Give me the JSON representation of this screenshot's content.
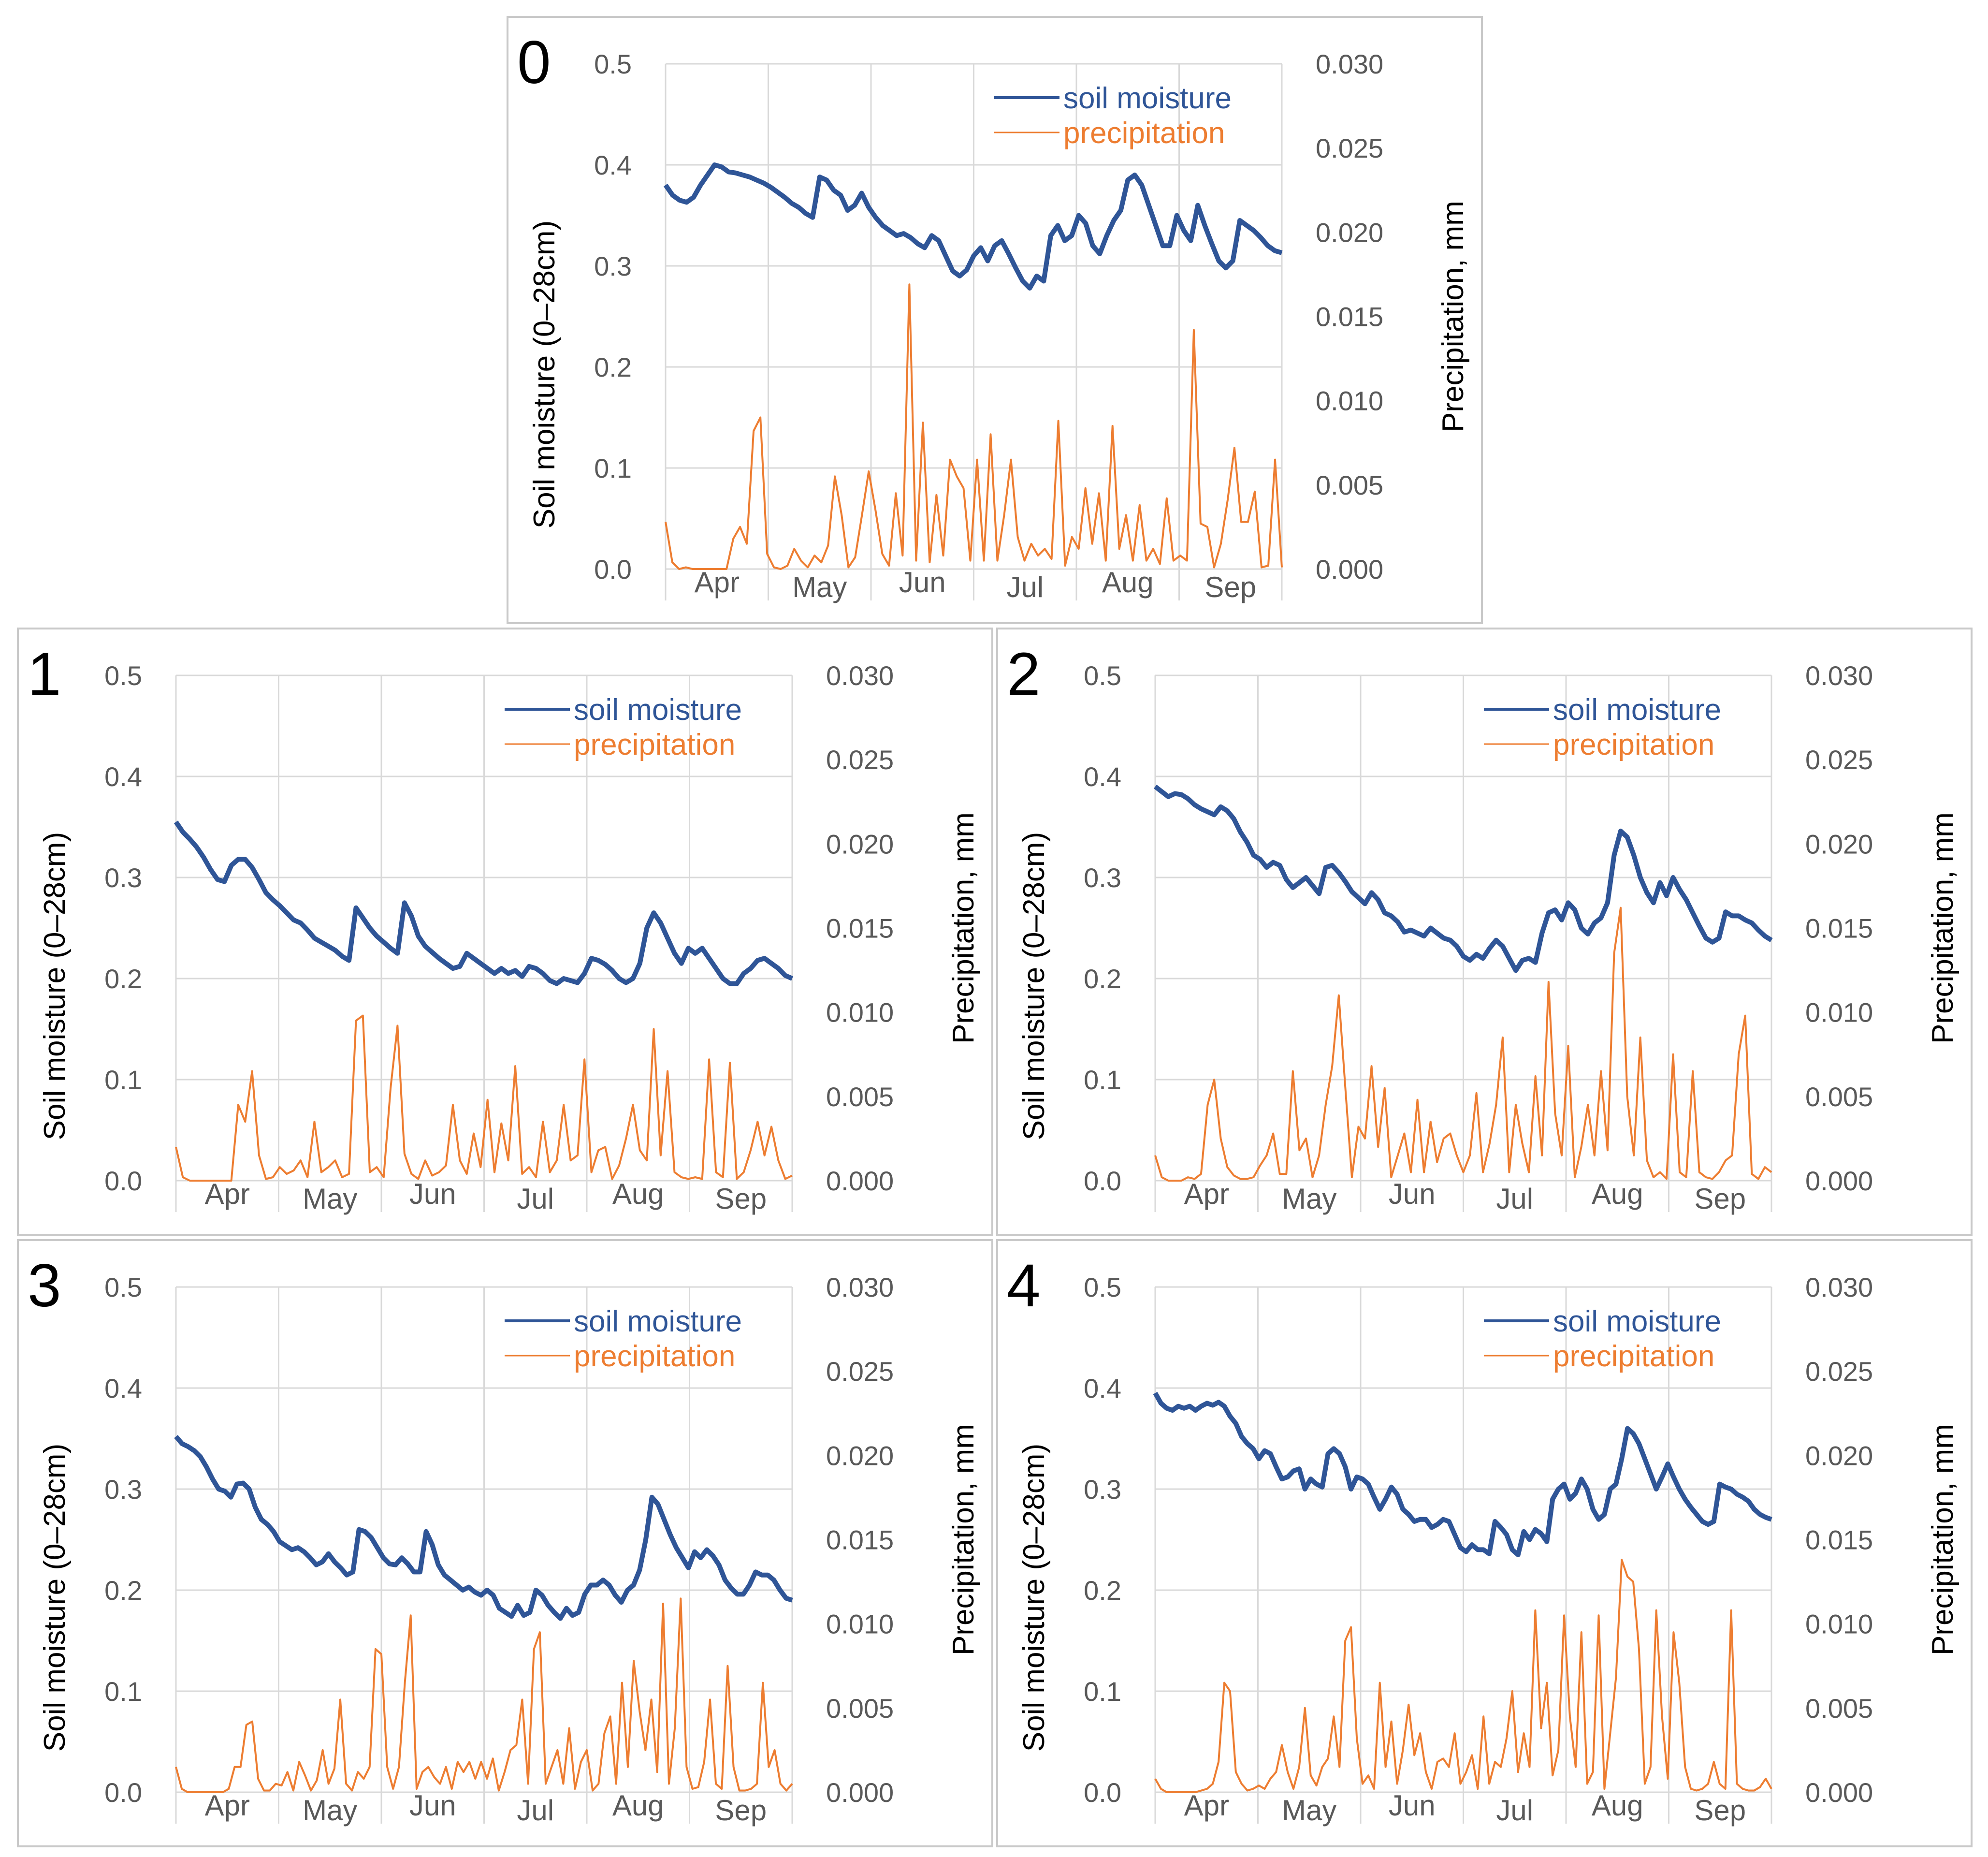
{
  "colors": {
    "soil": "#2f5597",
    "precip": "#ed7d31",
    "grid": "#d9d9d9",
    "tick_text": "#595959"
  },
  "chart_data": [
    {
      "type": "line",
      "panel_label": "0",
      "ylabel_left": "Soil moisture (0–28cm)",
      "ylabel_right": "Precipitation, mm",
      "y_left_ticks": [
        "0.0",
        "0.1",
        "0.2",
        "0.3",
        "0.4",
        "0.5"
      ],
      "y_right_ticks": [
        "0.000",
        "0.005",
        "0.010",
        "0.015",
        "0.020",
        "0.025",
        "0.030"
      ],
      "ylim_left": [
        0,
        0.5
      ],
      "ylim_right": [
        0,
        0.03
      ],
      "months": [
        "Apr",
        "May",
        "Jun",
        "Jul",
        "Aug",
        "Sep"
      ],
      "legend": {
        "soil": "soil moisture",
        "precip": "precipitation",
        "position": "top-right"
      },
      "soil_moisture": [
        0.38,
        0.37,
        0.365,
        0.363,
        0.368,
        0.38,
        0.39,
        0.4,
        0.398,
        0.393,
        0.392,
        0.39,
        0.388,
        0.385,
        0.382,
        0.378,
        0.373,
        0.368,
        0.362,
        0.358,
        0.352,
        0.348,
        0.388,
        0.385,
        0.375,
        0.37,
        0.355,
        0.36,
        0.372,
        0.358,
        0.348,
        0.34,
        0.335,
        0.33,
        0.332,
        0.328,
        0.322,
        0.318,
        0.33,
        0.325,
        0.31,
        0.295,
        0.29,
        0.296,
        0.31,
        0.318,
        0.305,
        0.32,
        0.325,
        0.312,
        0.298,
        0.285,
        0.278,
        0.29,
        0.285,
        0.33,
        0.34,
        0.325,
        0.33,
        0.35,
        0.342,
        0.32,
        0.312,
        0.33,
        0.345,
        0.355,
        0.385,
        0.39,
        0.38,
        0.36,
        0.34,
        0.32,
        0.32,
        0.35,
        0.335,
        0.325,
        0.36,
        0.34,
        0.322,
        0.305,
        0.298,
        0.305,
        0.345,
        0.34,
        0.335,
        0.328,
        0.32,
        0.315,
        0.313
      ],
      "precipitation": [
        0.0028,
        0.0004,
        0,
        0.0001,
        0,
        0,
        0,
        0,
        0,
        0,
        0.0018,
        0.0025,
        0.0015,
        0.0082,
        0.009,
        0.0009,
        0.0001,
        0,
        0.0002,
        0.0012,
        0.0005,
        0.0001,
        0.0008,
        0.0004,
        0.0014,
        0.0055,
        0.0032,
        0.0001,
        0.0007,
        0.0032,
        0.0058,
        0.0035,
        0.0009,
        0.0002,
        0.0045,
        0.0008,
        0.0169,
        0.0005,
        0.0087,
        0.0004,
        0.0044,
        0.0008,
        0.0065,
        0.0055,
        0.0048,
        0.0005,
        0.0065,
        0.0005,
        0.008,
        0.0005,
        0.0032,
        0.0065,
        0.0019,
        0.0005,
        0.0015,
        0.0008,
        0.0012,
        0.0006,
        0.0088,
        0.0002,
        0.0019,
        0.0012,
        0.0048,
        0.0015,
        0.0045,
        0.0005,
        0.0085,
        0.0012,
        0.0032,
        0.0005,
        0.0038,
        0.0005,
        0.0012,
        0.0003,
        0.0042,
        0.0005,
        0.0008,
        0.0005,
        0.0142,
        0.0027,
        0.0025,
        0.0001,
        0.0015,
        0.0041,
        0.0072,
        0.0028,
        0.0028,
        0.0046,
        0.0001,
        0.0002,
        0.0065,
        0.0001
      ],
      "month_ticks": [
        "Apr",
        "May",
        "Jun",
        "Jul",
        "Aug",
        "Sep"
      ]
    },
    {
      "type": "line",
      "panel_label": "1",
      "ylabel_left": "Soil moisture (0–28cm)",
      "ylabel_right": "Precipitation, mm",
      "y_left_ticks": [
        "0.0",
        "0.1",
        "0.2",
        "0.3",
        "0.4",
        "0.5"
      ],
      "y_right_ticks": [
        "0.000",
        "0.005",
        "0.010",
        "0.015",
        "0.020",
        "0.025",
        "0.030"
      ],
      "ylim_left": [
        0,
        0.5
      ],
      "ylim_right": [
        0,
        0.03
      ],
      "months": [
        "Apr",
        "May",
        "Jun",
        "Jul",
        "Aug",
        "Sep"
      ],
      "legend": {
        "soil": "soil moisture",
        "precip": "precipitation",
        "position": "top-right"
      },
      "soil_moisture": [
        0.355,
        0.345,
        0.338,
        0.33,
        0.32,
        0.308,
        0.298,
        0.296,
        0.312,
        0.318,
        0.318,
        0.31,
        0.298,
        0.285,
        0.278,
        0.272,
        0.265,
        0.258,
        0.255,
        0.248,
        0.24,
        0.236,
        0.232,
        0.228,
        0.222,
        0.218,
        0.27,
        0.26,
        0.25,
        0.242,
        0.236,
        0.23,
        0.225,
        0.275,
        0.262,
        0.242,
        0.232,
        0.226,
        0.22,
        0.215,
        0.21,
        0.212,
        0.225,
        0.22,
        0.215,
        0.21,
        0.205,
        0.21,
        0.205,
        0.208,
        0.202,
        0.212,
        0.21,
        0.205,
        0.198,
        0.195,
        0.2,
        0.198,
        0.196,
        0.205,
        0.22,
        0.218,
        0.214,
        0.208,
        0.2,
        0.196,
        0.2,
        0.215,
        0.25,
        0.265,
        0.255,
        0.24,
        0.225,
        0.215,
        0.23,
        0.225,
        0.23,
        0.22,
        0.21,
        0.2,
        0.195,
        0.195,
        0.205,
        0.21,
        0.218,
        0.22,
        0.215,
        0.21,
        0.203,
        0.2
      ],
      "precipitation": [
        0.002,
        0.0002,
        0,
        0,
        0,
        0,
        0,
        0,
        0,
        0.0045,
        0.0035,
        0.0065,
        0.0015,
        0.0001,
        0.0002,
        0.0008,
        0.0004,
        0.0006,
        0.0012,
        0.0002,
        0.0035,
        0.0005,
        0.0008,
        0.0012,
        0.0002,
        0.0004,
        0.0095,
        0.0098,
        0.0005,
        0.0008,
        0.0002,
        0.0055,
        0.0092,
        0.0016,
        0.0004,
        0.0001,
        0.0012,
        0.0003,
        0.0005,
        0.0009,
        0.0045,
        0.0012,
        0.0004,
        0.0028,
        0.0008,
        0.0048,
        0.0005,
        0.0034,
        0.0012,
        0.0068,
        0.0004,
        0.0008,
        0.0002,
        0.0035,
        0.0005,
        0.0012,
        0.0045,
        0.0012,
        0.0015,
        0.0072,
        0.0005,
        0.0018,
        0.002,
        0.0001,
        0.0009,
        0.0025,
        0.0045,
        0.0018,
        0.0012,
        0.009,
        0.0015,
        0.0065,
        0.0005,
        0.0002,
        0.0001,
        0.0002,
        0.0001,
        0.0072,
        0.0005,
        0.0002,
        0.007,
        0.0001,
        0.0005,
        0.0018,
        0.0035,
        0.0015,
        0.0032,
        0.0012,
        0.0001,
        0.0003
      ],
      "month_ticks": [
        "Apr",
        "May",
        "Jun",
        "Jul",
        "Aug",
        "Sep"
      ]
    },
    {
      "type": "line",
      "panel_label": "2",
      "ylabel_left": "Soil moisture (0–28cm)",
      "ylabel_right": "Precipitation, mm",
      "y_left_ticks": [
        "0.0",
        "0.1",
        "0.2",
        "0.3",
        "0.4",
        "0.5"
      ],
      "y_right_ticks": [
        "0.000",
        "0.005",
        "0.010",
        "0.015",
        "0.020",
        "0.025",
        "0.030"
      ],
      "ylim_left": [
        0,
        0.5
      ],
      "ylim_right": [
        0,
        0.03
      ],
      "months": [
        "Apr",
        "May",
        "Jun",
        "Jul",
        "Aug",
        "Sep"
      ],
      "legend": {
        "soil": "soil moisture",
        "precip": "precipitation",
        "position": "top-right"
      },
      "soil_moisture": [
        0.39,
        0.385,
        0.38,
        0.383,
        0.382,
        0.378,
        0.372,
        0.368,
        0.365,
        0.362,
        0.37,
        0.366,
        0.358,
        0.345,
        0.335,
        0.322,
        0.318,
        0.31,
        0.315,
        0.312,
        0.298,
        0.29,
        0.295,
        0.3,
        0.292,
        0.284,
        0.31,
        0.312,
        0.305,
        0.296,
        0.286,
        0.28,
        0.274,
        0.285,
        0.278,
        0.265,
        0.262,
        0.256,
        0.246,
        0.248,
        0.245,
        0.242,
        0.25,
        0.245,
        0.24,
        0.238,
        0.232,
        0.222,
        0.218,
        0.224,
        0.22,
        0.23,
        0.238,
        0.232,
        0.22,
        0.208,
        0.218,
        0.22,
        0.216,
        0.245,
        0.265,
        0.268,
        0.258,
        0.275,
        0.268,
        0.25,
        0.244,
        0.255,
        0.26,
        0.275,
        0.322,
        0.346,
        0.34,
        0.322,
        0.3,
        0.285,
        0.275,
        0.295,
        0.282,
        0.3,
        0.288,
        0.278,
        0.265,
        0.252,
        0.24,
        0.236,
        0.24,
        0.266,
        0.262,
        0.262,
        0.258,
        0.255,
        0.248,
        0.242,
        0.238
      ],
      "precipitation": [
        0.0015,
        0.0002,
        0,
        0,
        0,
        0.0002,
        0.0001,
        0.0004,
        0.0045,
        0.006,
        0.0025,
        0.0008,
        0.0003,
        0.0001,
        0.0001,
        0.0002,
        0.0009,
        0.0015,
        0.0028,
        0.0004,
        0.0004,
        0.0065,
        0.0018,
        0.0025,
        0.0002,
        0.0015,
        0.0045,
        0.0068,
        0.011,
        0.0055,
        0.0002,
        0.0032,
        0.0025,
        0.0068,
        0.002,
        0.0055,
        0.0002,
        0.0015,
        0.0028,
        0.0005,
        0.0048,
        0.0005,
        0.0035,
        0.0011,
        0.0025,
        0.0028,
        0.0015,
        0.0005,
        0.0015,
        0.0052,
        0.0005,
        0.0022,
        0.0045,
        0.0085,
        0.0005,
        0.0045,
        0.0022,
        0.0005,
        0.0062,
        0.0015,
        0.0118,
        0.004,
        0.0015,
        0.008,
        0.0002,
        0.002,
        0.0045,
        0.0015,
        0.0065,
        0.0018,
        0.0135,
        0.0162,
        0.005,
        0.0015,
        0.0085,
        0.0012,
        0.0002,
        0.0005,
        0.0001,
        0.0075,
        0.0005,
        0.0002,
        0.0065,
        0.0005,
        0.0002,
        0.0001,
        0.0005,
        0.0012,
        0.0015,
        0.0075,
        0.0098,
        0.0004,
        0.0001,
        0.0008,
        0.0005
      ],
      "month_ticks": [
        "Apr",
        "May",
        "Jun",
        "Jul",
        "Aug",
        "Sep"
      ]
    },
    {
      "type": "line",
      "panel_label": "3",
      "ylabel_left": "Soil moisture (0–28cm)",
      "ylabel_right": "Precipitation, mm",
      "y_left_ticks": [
        "0.0",
        "0.1",
        "0.2",
        "0.3",
        "0.4",
        "0.5"
      ],
      "y_right_ticks": [
        "0.000",
        "0.005",
        "0.010",
        "0.015",
        "0.020",
        "0.025",
        "0.030"
      ],
      "ylim_left": [
        0,
        0.5
      ],
      "ylim_right": [
        0,
        0.03
      ],
      "months": [
        "Apr",
        "May",
        "Jun",
        "Jul",
        "Aug",
        "Sep"
      ],
      "legend": {
        "soil": "soil moisture",
        "precip": "precipitation",
        "position": "top-right"
      },
      "soil_moisture": [
        0.352,
        0.345,
        0.342,
        0.338,
        0.332,
        0.322,
        0.31,
        0.3,
        0.298,
        0.292,
        0.305,
        0.306,
        0.3,
        0.282,
        0.27,
        0.265,
        0.258,
        0.248,
        0.244,
        0.24,
        0.242,
        0.238,
        0.232,
        0.225,
        0.228,
        0.236,
        0.228,
        0.222,
        0.215,
        0.218,
        0.26,
        0.258,
        0.252,
        0.242,
        0.232,
        0.226,
        0.225,
        0.232,
        0.226,
        0.218,
        0.218,
        0.258,
        0.245,
        0.225,
        0.215,
        0.21,
        0.205,
        0.2,
        0.203,
        0.198,
        0.195,
        0.2,
        0.195,
        0.182,
        0.178,
        0.174,
        0.185,
        0.175,
        0.178,
        0.2,
        0.195,
        0.185,
        0.178,
        0.172,
        0.182,
        0.175,
        0.178,
        0.196,
        0.205,
        0.205,
        0.21,
        0.205,
        0.195,
        0.188,
        0.2,
        0.205,
        0.22,
        0.25,
        0.292,
        0.285,
        0.27,
        0.255,
        0.242,
        0.232,
        0.222,
        0.238,
        0.232,
        0.24,
        0.234,
        0.225,
        0.21,
        0.202,
        0.196,
        0.196,
        0.205,
        0.218,
        0.215,
        0.215,
        0.21,
        0.2,
        0.192,
        0.19
      ],
      "precipitation": [
        0.0015,
        0.0002,
        0,
        0,
        0,
        0,
        0,
        0,
        0,
        0.0002,
        0.0015,
        0.0015,
        0.004,
        0.0042,
        0.0008,
        0.0001,
        0.0001,
        0.0005,
        0.0004,
        0.0012,
        0.0001,
        0.0018,
        0.001,
        0.0001,
        0.0007,
        0.0025,
        0.0005,
        0.0014,
        0.0055,
        0.0005,
        0.0001,
        0.0012,
        0.0008,
        0.0015,
        0.0085,
        0.0082,
        0.0015,
        0.0002,
        0.0015,
        0.0065,
        0.0105,
        0.0002,
        0.0012,
        0.0015,
        0.0009,
        0.0005,
        0.0015,
        0.0002,
        0.0018,
        0.0012,
        0.0018,
        0.0008,
        0.0018,
        0.0008,
        0.002,
        0.0001,
        0.0012,
        0.0025,
        0.0028,
        0.0055,
        0.0005,
        0.0085,
        0.0095,
        0.0005,
        0.0015,
        0.0025,
        0.0005,
        0.0038,
        0.0002,
        0.0018,
        0.0025,
        0.0001,
        0.0005,
        0.0035,
        0.0045,
        0.0005,
        0.0065,
        0.0015,
        0.0078,
        0.0048,
        0.0025,
        0.0055,
        0.0012,
        0.0112,
        0.0005,
        0.0038,
        0.0115,
        0.0015,
        0.0002,
        0.0003,
        0.0018,
        0.0055,
        0.0005,
        0.0002,
        0.0075,
        0.0015,
        0.0001,
        0.0001,
        0.0002,
        0.0005,
        0.0065,
        0.0015,
        0.0025,
        0.0005,
        0.0001,
        0.0005
      ],
      "month_ticks": [
        "Apr",
        "May",
        "Jun",
        "Jul",
        "Aug",
        "Sep"
      ]
    },
    {
      "type": "line",
      "panel_label": "4",
      "ylabel_left": "Soil moisture (0–28cm)",
      "ylabel_right": "Precipitation, mm",
      "y_left_ticks": [
        "0.0",
        "0.1",
        "0.2",
        "0.3",
        "0.4",
        "0.5"
      ],
      "y_right_ticks": [
        "0.000",
        "0.005",
        "0.010",
        "0.015",
        "0.020",
        "0.025",
        "0.030"
      ],
      "ylim_left": [
        0,
        0.5
      ],
      "ylim_right": [
        0,
        0.03
      ],
      "months": [
        "Apr",
        "May",
        "Jun",
        "Jul",
        "Aug",
        "Sep"
      ],
      "legend": {
        "soil": "soil moisture",
        "precip": "precipitation",
        "position": "top-right"
      },
      "soil_moisture": [
        0.395,
        0.385,
        0.38,
        0.378,
        0.382,
        0.38,
        0.382,
        0.378,
        0.382,
        0.385,
        0.383,
        0.386,
        0.382,
        0.372,
        0.365,
        0.352,
        0.345,
        0.34,
        0.33,
        0.338,
        0.335,
        0.322,
        0.31,
        0.312,
        0.318,
        0.32,
        0.3,
        0.31,
        0.305,
        0.302,
        0.335,
        0.34,
        0.335,
        0.322,
        0.3,
        0.312,
        0.31,
        0.305,
        0.292,
        0.28,
        0.29,
        0.302,
        0.295,
        0.28,
        0.275,
        0.268,
        0.27,
        0.27,
        0.262,
        0.265,
        0.27,
        0.268,
        0.255,
        0.242,
        0.238,
        0.245,
        0.24,
        0.24,
        0.236,
        0.268,
        0.262,
        0.255,
        0.24,
        0.235,
        0.258,
        0.25,
        0.26,
        0.256,
        0.248,
        0.29,
        0.3,
        0.305,
        0.29,
        0.296,
        0.31,
        0.3,
        0.28,
        0.27,
        0.275,
        0.3,
        0.305,
        0.33,
        0.36,
        0.355,
        0.345,
        0.33,
        0.315,
        0.3,
        0.312,
        0.325,
        0.312,
        0.3,
        0.29,
        0.282,
        0.275,
        0.268,
        0.265,
        0.268,
        0.305,
        0.302,
        0.3,
        0.295,
        0.292,
        0.288,
        0.28,
        0.275,
        0.272,
        0.27
      ],
      "precipitation": [
        0.0008,
        0.0002,
        0,
        0,
        0,
        0,
        0,
        0,
        0.0001,
        0.0002,
        0.0005,
        0.0018,
        0.0065,
        0.006,
        0.0012,
        0.0005,
        0.0001,
        0.0002,
        0.0004,
        0.0002,
        0.0008,
        0.0012,
        0.0028,
        0.0012,
        0.0002,
        0.0015,
        0.005,
        0.001,
        0.0004,
        0.0015,
        0.002,
        0.0045,
        0.0015,
        0.009,
        0.0098,
        0.0032,
        0.0005,
        0.001,
        0.0002,
        0.0065,
        0.0015,
        0.0042,
        0.0005,
        0.0025,
        0.0052,
        0.0022,
        0.0035,
        0.0012,
        0.0002,
        0.0018,
        0.002,
        0.0015,
        0.0035,
        0.0005,
        0.0012,
        0.0022,
        0.0002,
        0.0045,
        0.0005,
        0.0018,
        0.0015,
        0.0032,
        0.006,
        0.0012,
        0.0035,
        0.0015,
        0.0108,
        0.0038,
        0.0065,
        0.001,
        0.0025,
        0.0105,
        0.0045,
        0.0015,
        0.0095,
        0.0005,
        0.0012,
        0.0105,
        0.0002,
        0.0035,
        0.0068,
        0.0138,
        0.0128,
        0.0125,
        0.0085,
        0.0005,
        0.0015,
        0.0108,
        0.0045,
        0.0008,
        0.0095,
        0.0065,
        0.0015,
        0.0002,
        0.0001,
        0.0002,
        0.0005,
        0.0018,
        0.0005,
        0.0002,
        0.0108,
        0.0005,
        0.0002,
        0.0001,
        0.0001,
        0.0003,
        0.0008,
        0.0002
      ],
      "month_ticks": [
        "Apr",
        "May",
        "Jun",
        "Jul",
        "Aug",
        "Sep"
      ]
    }
  ]
}
